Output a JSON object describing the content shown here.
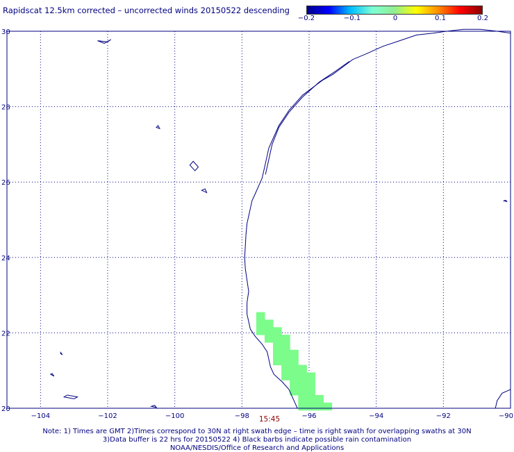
{
  "title": "Rapidscat 12.5km corrected – uncorrected winds 20150522 descending",
  "colorbar": {
    "ticks": [
      "−0.2",
      "−0.1",
      "0",
      "0.1",
      "0.2"
    ],
    "colors": [
      "#00008b",
      "#0000ff",
      "#00bfff",
      "#7fffd4",
      "#90ee90",
      "#ffff00",
      "#ff8c00",
      "#ff0000",
      "#8b0000"
    ]
  },
  "axes": {
    "x_ticks": [
      "−104",
      "−102",
      "−100",
      "−98",
      "−96",
      "−94",
      "−92",
      "−90"
    ],
    "y_ticks": [
      "30",
      "28",
      "26",
      "24",
      "22",
      "20"
    ],
    "lon_range": [
      -105,
      -90
    ],
    "lat_range": [
      20,
      30
    ]
  },
  "time_label": "15:45",
  "notes": [
    "Note: 1) Times are GMT 2)Times correspond to 30N at right swath edge – time is right swath for overlapping swaths at 30N",
    "3)Data buffer is 22 hrs for 20150522 4) Black barbs indicate possible rain contamination",
    "NOAA/NESDIS/Office of Research and Applications"
  ],
  "colors": {
    "coast": "#000080",
    "swath": "#7cfc8a",
    "grid": "#000080"
  }
}
